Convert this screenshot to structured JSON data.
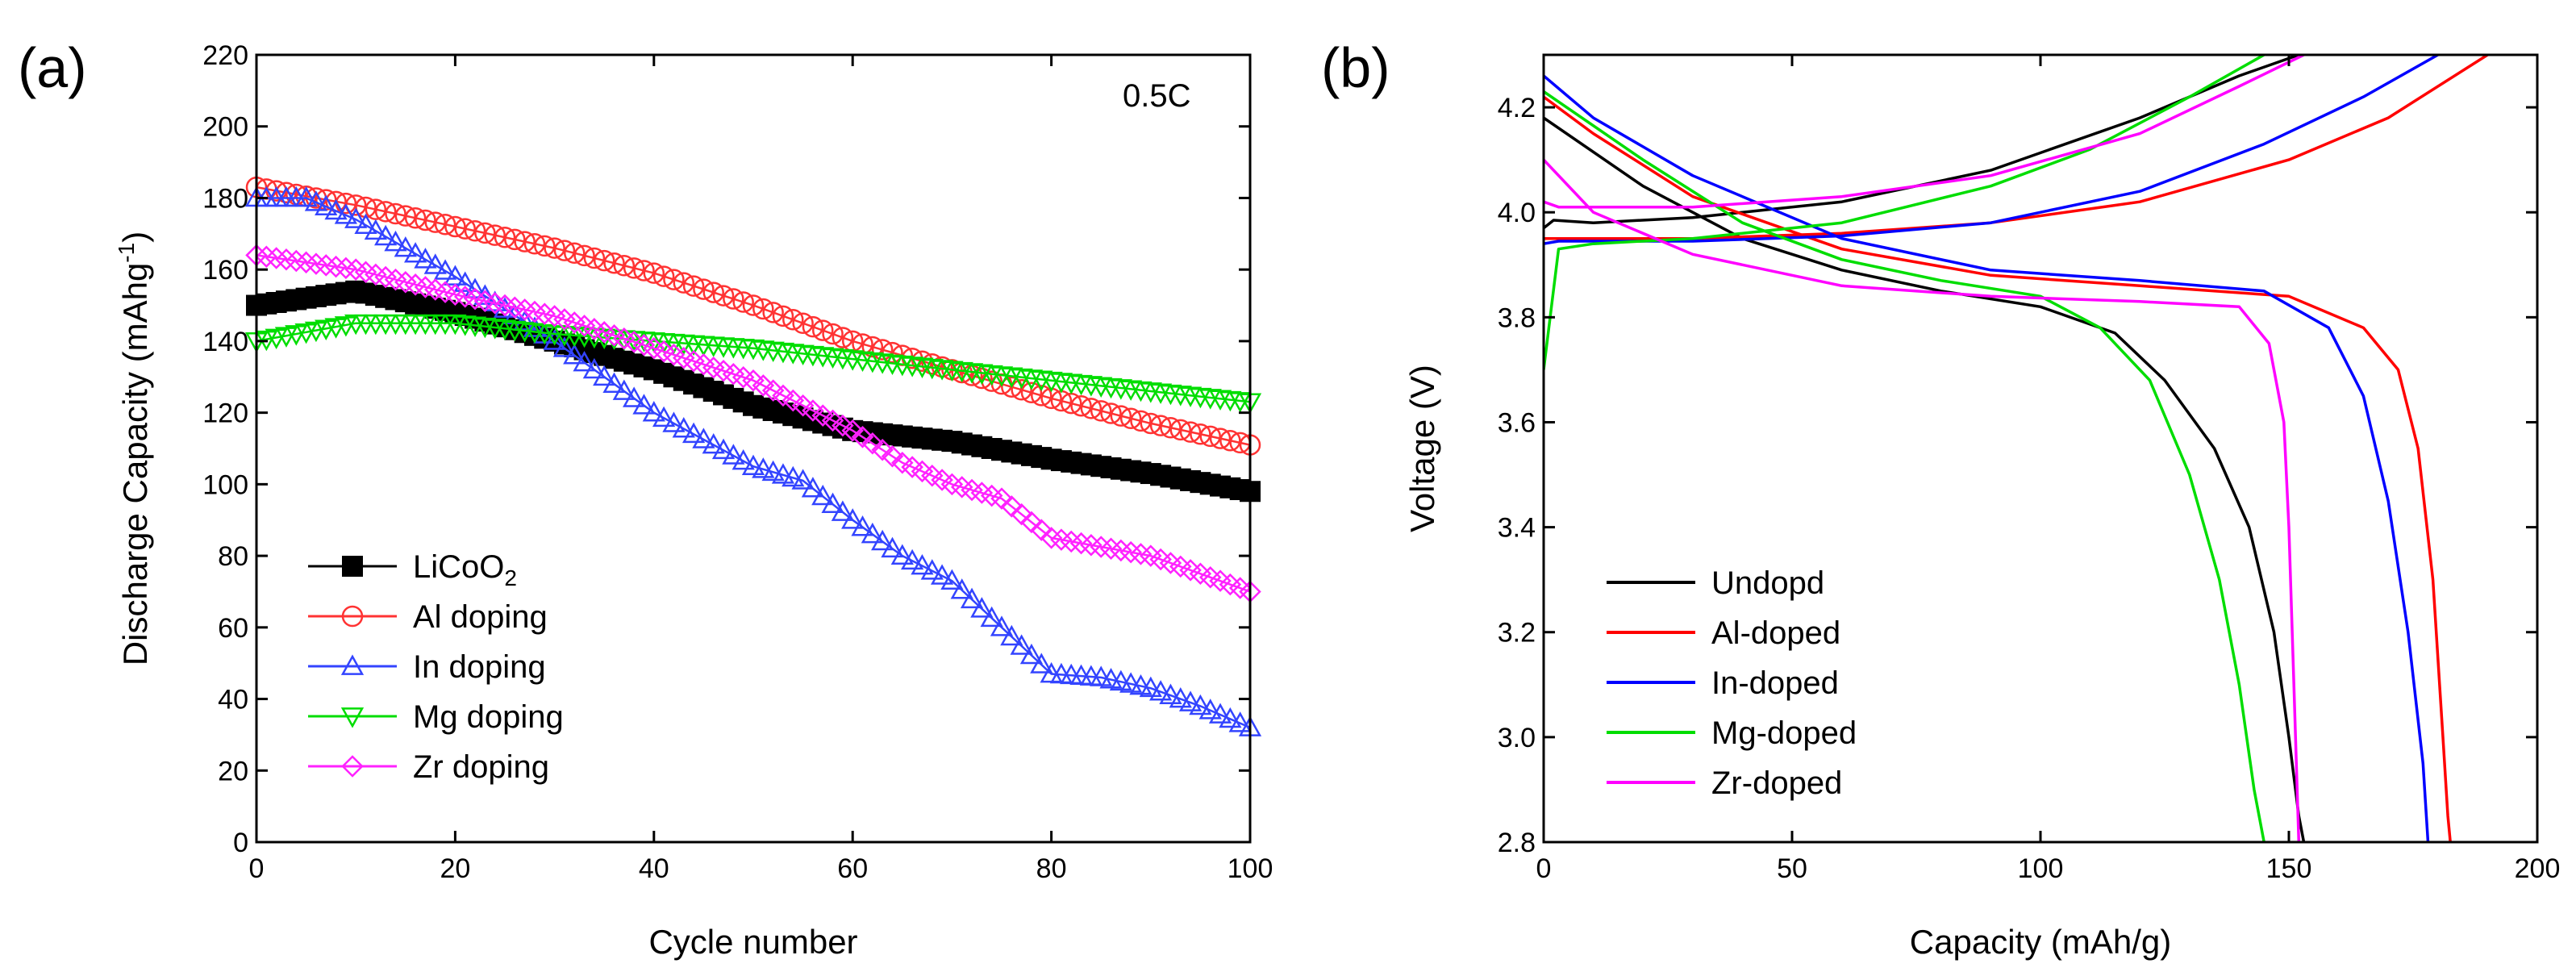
{
  "chart_data": [
    {
      "type": "line",
      "panel_label": "(a)",
      "annotation": "0.5C",
      "xlabel": "Cycle number",
      "ylabel_main": "Discharge Capacity (mAhg",
      "ylabel_sup": "-1",
      "ylabel_close": ")",
      "xlim": [
        0,
        100
      ],
      "ylim": [
        0,
        220
      ],
      "xticks": [
        "0",
        "20",
        "40",
        "60",
        "80",
        "100"
      ],
      "yticks": [
        "0",
        "20",
        "40",
        "60",
        "80",
        "100",
        "120",
        "140",
        "160",
        "180",
        "200",
        "220"
      ],
      "legend_position": "bottom-left",
      "series": [
        {
          "name": "LiCoO",
          "name_sub": "2",
          "color": "#000000",
          "marker": "square-filled",
          "x": [
            0,
            10,
            20,
            30,
            40,
            50,
            60,
            70,
            80,
            90,
            100
          ],
          "y": [
            150,
            154,
            148,
            140,
            132,
            122,
            115,
            112,
            107,
            103,
            98
          ]
        },
        {
          "name": "Al doping",
          "color": "#ff3333",
          "marker": "circle-open",
          "x": [
            0,
            10,
            20,
            30,
            40,
            50,
            60,
            70,
            80,
            90,
            100
          ],
          "y": [
            183,
            178,
            172,
            166,
            159,
            150,
            140,
            132,
            124,
            117,
            111
          ]
        },
        {
          "name": "In doping",
          "color": "#3344ff",
          "marker": "triangle-up-open",
          "x": [
            0,
            5,
            10,
            20,
            30,
            40,
            50,
            55,
            60,
            65,
            70,
            75,
            80,
            85,
            90,
            95,
            100
          ],
          "y": [
            180,
            180,
            174,
            158,
            140,
            120,
            105,
            101,
            90,
            80,
            73,
            60,
            47,
            46,
            43,
            38,
            32
          ]
        },
        {
          "name": "Mg doping",
          "color": "#00dd00",
          "marker": "triangle-down-open",
          "x": [
            0,
            10,
            20,
            30,
            40,
            50,
            60,
            70,
            80,
            90,
            100
          ],
          "y": [
            140,
            145,
            145,
            142,
            140,
            138,
            135,
            132,
            129,
            126,
            123
          ]
        },
        {
          "name": "Zr doping",
          "color": "#ff22ff",
          "marker": "diamond-open",
          "x": [
            0,
            10,
            20,
            30,
            40,
            50,
            60,
            65,
            70,
            75,
            80,
            90,
            100
          ],
          "y": [
            164,
            160,
            153,
            147,
            138,
            129,
            115,
            106,
            100,
            96,
            85,
            80,
            70
          ]
        }
      ]
    },
    {
      "type": "line",
      "panel_label": "(b)",
      "xlabel": "Capacity (mAh/g)",
      "ylabel": "Voltage (V)",
      "xlim": [
        0,
        200
      ],
      "ylim": [
        2.8,
        4.3
      ],
      "xticks": [
        "0",
        "50",
        "100",
        "150",
        "200"
      ],
      "yticks": [
        "2.8",
        "3.0",
        "3.2",
        "3.4",
        "3.6",
        "3.8",
        "4.0",
        "4.2"
      ],
      "legend_position": "bottom-left",
      "series": [
        {
          "name": "Undopd",
          "color": "#000000",
          "charge": {
            "x": [
              0,
              2,
              10,
              30,
              60,
              90,
              120,
              140,
              152
            ],
            "y": [
              3.97,
              3.985,
              3.98,
              3.99,
              4.02,
              4.08,
              4.18,
              4.26,
              4.3
            ]
          },
          "discharge": {
            "x": [
              0,
              20,
              40,
              60,
              80,
              100,
              115,
              125,
              135,
              142,
              147,
              150,
              152,
              153
            ],
            "y": [
              4.18,
              4.05,
              3.95,
              3.89,
              3.85,
              3.82,
              3.77,
              3.68,
              3.55,
              3.4,
              3.2,
              3.0,
              2.85,
              2.8
            ]
          }
        },
        {
          "name": "Al-doped",
          "color": "#ff0000",
          "charge": {
            "x": [
              0,
              3,
              10,
              30,
              60,
              90,
              120,
              150,
              170,
              190
            ],
            "y": [
              3.95,
              3.95,
              3.95,
              3.95,
              3.96,
              3.98,
              4.02,
              4.1,
              4.18,
              4.3
            ]
          },
          "discharge": {
            "x": [
              0,
              10,
              30,
              60,
              90,
              120,
              150,
              165,
              172,
              176,
              179,
              181,
              182,
              182.5
            ],
            "y": [
              4.22,
              4.15,
              4.03,
              3.93,
              3.88,
              3.86,
              3.84,
              3.78,
              3.7,
              3.55,
              3.3,
              3.0,
              2.85,
              2.8
            ]
          }
        },
        {
          "name": "In-doped",
          "color": "#0000ff",
          "charge": {
            "x": [
              0,
              3,
              10,
              30,
              60,
              90,
              120,
              145,
              165,
              180
            ],
            "y": [
              3.94,
              3.945,
              3.945,
              3.945,
              3.955,
              3.98,
              4.04,
              4.13,
              4.22,
              4.3
            ]
          },
          "discharge": {
            "x": [
              0,
              10,
              30,
              60,
              90,
              120,
              145,
              158,
              165,
              170,
              174,
              177,
              178
            ],
            "y": [
              4.26,
              4.18,
              4.07,
              3.95,
              3.89,
              3.87,
              3.85,
              3.78,
              3.65,
              3.45,
              3.2,
              2.95,
              2.8
            ]
          }
        },
        {
          "name": "Mg-doped",
          "color": "#00dd00",
          "charge": {
            "x": [
              0,
              3,
              10,
              30,
              60,
              90,
              110,
              130,
              145
            ],
            "y": [
              3.7,
              3.93,
              3.94,
              3.95,
              3.98,
              4.05,
              4.12,
              4.22,
              4.3
            ]
          },
          "discharge": {
            "x": [
              0,
              20,
              40,
              60,
              80,
              100,
              112,
              122,
              130,
              136,
              140,
              143,
              145
            ],
            "y": [
              4.23,
              4.1,
              3.98,
              3.91,
              3.87,
              3.84,
              3.78,
              3.68,
              3.5,
              3.3,
              3.1,
              2.9,
              2.8
            ]
          }
        },
        {
          "name": "Zr-doped",
          "color": "#ff00ff",
          "charge": {
            "x": [
              0,
              3,
              10,
              30,
              60,
              90,
              120,
              140,
              153
            ],
            "y": [
              4.02,
              4.01,
              4.01,
              4.01,
              4.03,
              4.07,
              4.15,
              4.24,
              4.3
            ]
          },
          "discharge": {
            "x": [
              0,
              10,
              30,
              60,
              90,
              120,
              140,
              146,
              149,
              150,
              151,
              152
            ],
            "y": [
              4.1,
              4.0,
              3.92,
              3.86,
              3.84,
              3.83,
              3.82,
              3.75,
              3.6,
              3.4,
              3.1,
              2.8
            ]
          }
        }
      ]
    }
  ]
}
